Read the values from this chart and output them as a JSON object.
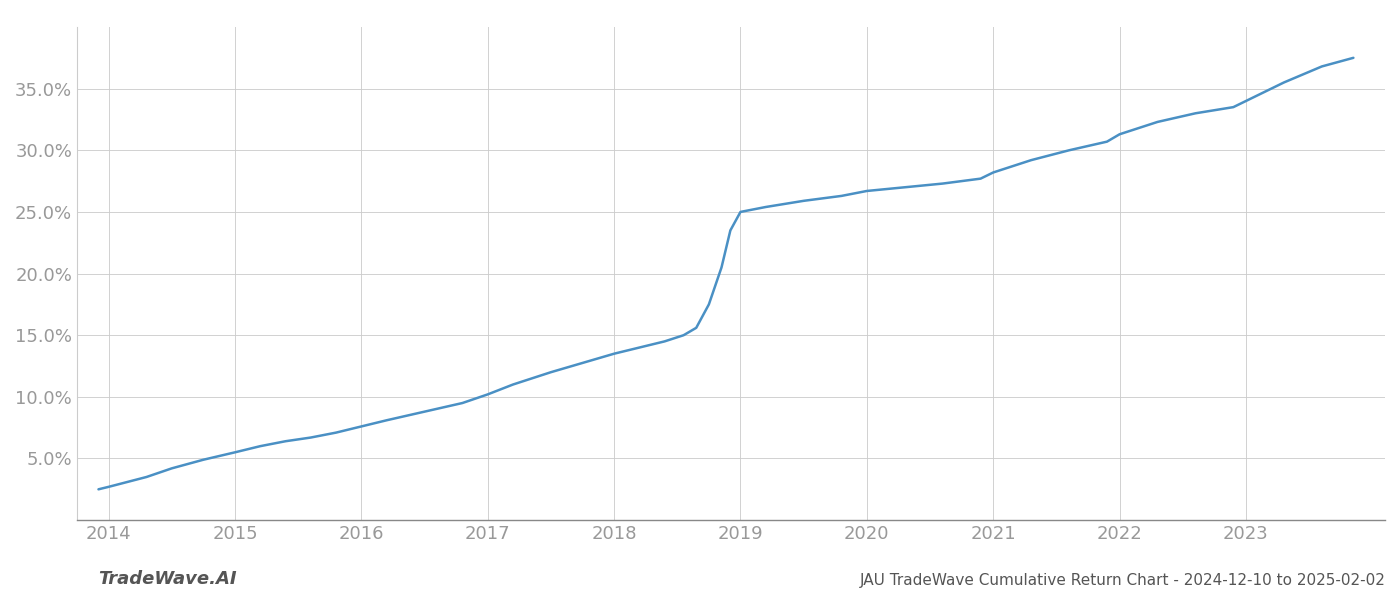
{
  "title": "JAU TradeWave Cumulative Return Chart - 2024-12-10 to 2025-02-02",
  "watermark": "TradeWave.AI",
  "line_color": "#4a90c4",
  "background_color": "#ffffff",
  "grid_color": "#cccccc",
  "x_years": [
    2013.92,
    2014.0,
    2014.15,
    2014.3,
    2014.5,
    2014.75,
    2015.0,
    2015.2,
    2015.4,
    2015.6,
    2015.8,
    2016.0,
    2016.2,
    2016.5,
    2016.8,
    2017.0,
    2017.2,
    2017.5,
    2017.8,
    2018.0,
    2018.2,
    2018.4,
    2018.55,
    2018.65,
    2018.75,
    2018.85,
    2018.92,
    2019.0,
    2019.2,
    2019.5,
    2019.8,
    2020.0,
    2020.3,
    2020.6,
    2020.9,
    2021.0,
    2021.3,
    2021.6,
    2021.9,
    2022.0,
    2022.3,
    2022.6,
    2022.9,
    2023.0,
    2023.3,
    2023.6,
    2023.85
  ],
  "y_values": [
    2.5,
    2.7,
    3.1,
    3.5,
    4.2,
    4.9,
    5.5,
    6.0,
    6.4,
    6.7,
    7.1,
    7.6,
    8.1,
    8.8,
    9.5,
    10.2,
    11.0,
    12.0,
    12.9,
    13.5,
    14.0,
    14.5,
    15.0,
    15.6,
    17.5,
    20.5,
    23.5,
    25.0,
    25.4,
    25.9,
    26.3,
    26.7,
    27.0,
    27.3,
    27.7,
    28.2,
    29.2,
    30.0,
    30.7,
    31.3,
    32.3,
    33.0,
    33.5,
    34.0,
    35.5,
    36.8,
    37.5
  ],
  "xlim": [
    2013.75,
    2024.1
  ],
  "ylim": [
    0,
    40
  ],
  "yticks": [
    5.0,
    10.0,
    15.0,
    20.0,
    25.0,
    30.0,
    35.0
  ],
  "xticks": [
    2014,
    2015,
    2016,
    2017,
    2018,
    2019,
    2020,
    2021,
    2022,
    2023
  ],
  "line_width": 1.8,
  "tick_label_color": "#999999",
  "title_color": "#555555",
  "watermark_color": "#555555",
  "watermark_fontsize": 13,
  "tick_fontsize": 13,
  "title_fontsize": 11
}
